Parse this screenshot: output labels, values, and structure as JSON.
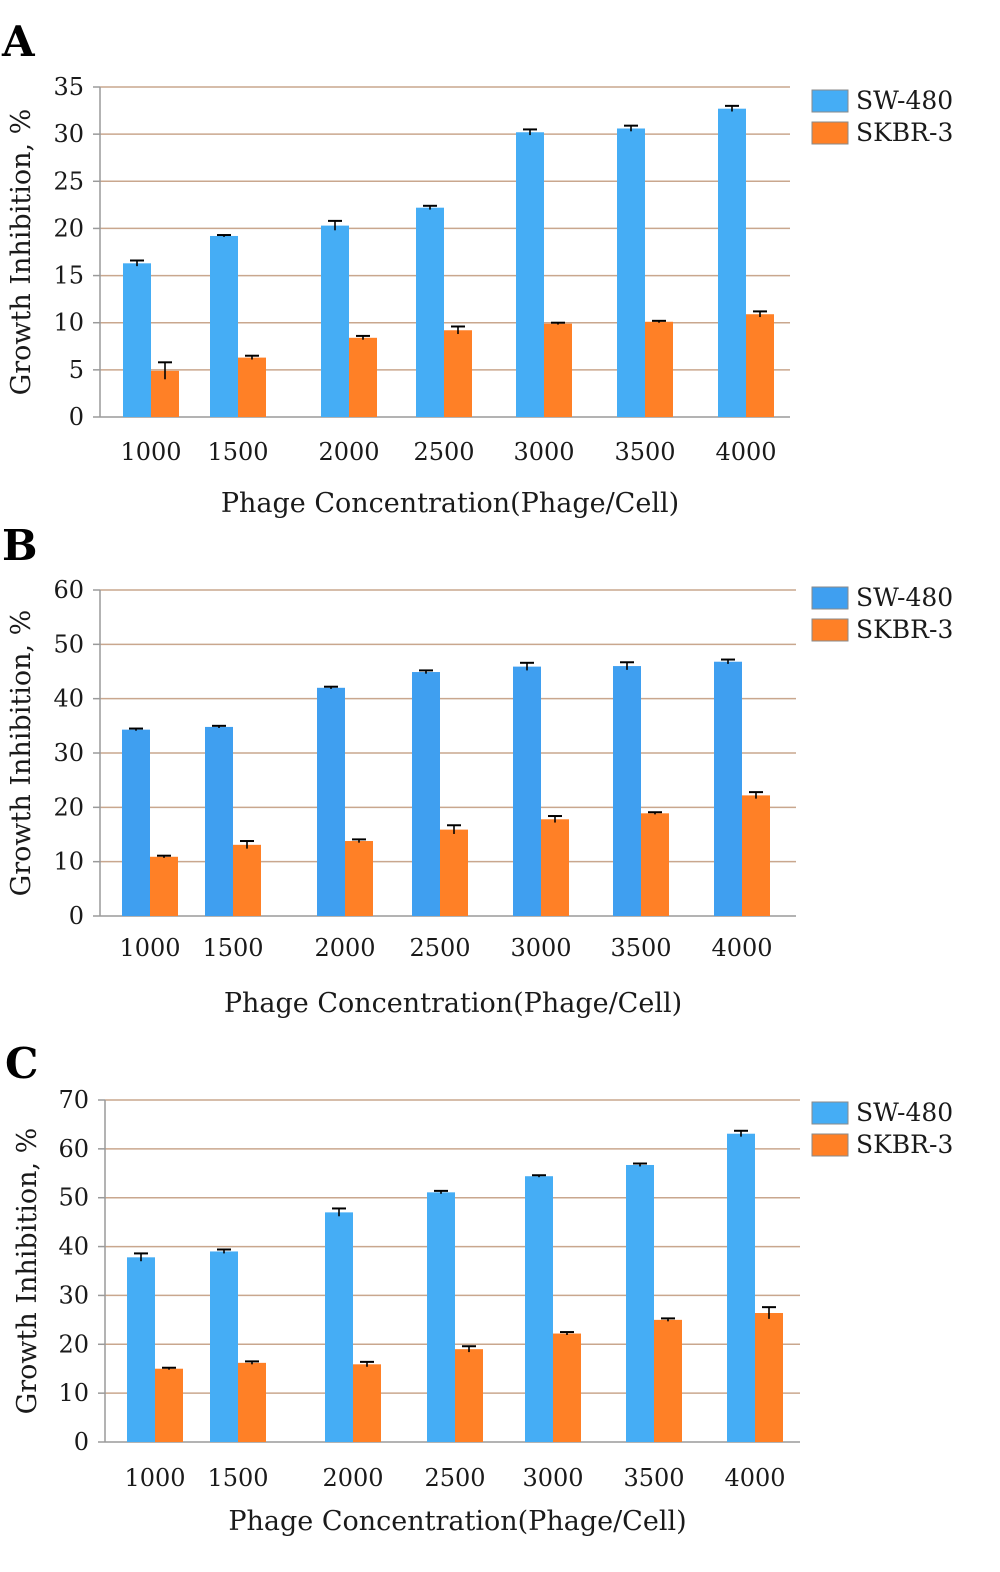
{
  "chart_data": [
    {
      "type": "bar",
      "panel_label": "A",
      "categories": [
        "1000",
        "1500",
        "2000",
        "2500",
        "3000",
        "3500",
        "4000"
      ],
      "series": [
        {
          "name": "SW-480",
          "color": "#45adf5",
          "values": [
            16.3,
            19.2,
            20.3,
            22.2,
            30.2,
            30.6,
            32.7
          ],
          "errors": [
            0.3,
            0.1,
            0.5,
            0.2,
            0.3,
            0.3,
            0.3
          ]
        },
        {
          "name": "SKBR-3",
          "color": "#ff8026",
          "values": [
            4.9,
            6.3,
            8.4,
            9.2,
            9.9,
            10.1,
            10.9
          ],
          "errors": [
            0.9,
            0.2,
            0.2,
            0.4,
            0.1,
            0.1,
            0.3
          ]
        }
      ],
      "xlabel": "Phage Concentration(Phage/Cell)",
      "ylabel": "Growth Inhibition, %",
      "ylim": [
        0,
        35
      ],
      "yticks": [
        0,
        5,
        10,
        15,
        20,
        25,
        30,
        35
      ],
      "grid": true,
      "legend": "right"
    },
    {
      "type": "bar",
      "panel_label": "B",
      "categories": [
        "1000",
        "1500",
        "2000",
        "2500",
        "3000",
        "3500",
        "4000"
      ],
      "series": [
        {
          "name": "SW-480",
          "color": "#3f9ff0",
          "values": [
            34.3,
            34.8,
            42.0,
            44.9,
            45.9,
            46.0,
            46.8
          ],
          "errors": [
            0.2,
            0.2,
            0.2,
            0.3,
            0.7,
            0.7,
            0.4
          ]
        },
        {
          "name": "SKBR-3",
          "color": "#ff8026",
          "values": [
            10.9,
            13.1,
            13.8,
            15.9,
            17.8,
            18.9,
            22.2
          ],
          "errors": [
            0.2,
            0.7,
            0.3,
            0.8,
            0.6,
            0.2,
            0.6
          ]
        }
      ],
      "xlabel": "Phage Concentration(Phage/Cell)",
      "ylabel": "Growth Inhibition, %",
      "ylim": [
        0,
        60
      ],
      "yticks": [
        0,
        10,
        20,
        30,
        40,
        50,
        60
      ],
      "grid": true,
      "legend": "right"
    },
    {
      "type": "bar",
      "panel_label": "C",
      "categories": [
        "1000",
        "1500",
        "2000",
        "2500",
        "3000",
        "3500",
        "4000"
      ],
      "series": [
        {
          "name": "SW-480",
          "color": "#45adf5",
          "values": [
            37.8,
            39.0,
            47.0,
            51.1,
            54.4,
            56.7,
            63.1
          ],
          "errors": [
            0.8,
            0.4,
            0.8,
            0.3,
            0.2,
            0.3,
            0.6
          ]
        },
        {
          "name": "SKBR-3",
          "color": "#ff8026",
          "values": [
            15.0,
            16.2,
            15.9,
            19.0,
            22.2,
            25.0,
            26.4
          ],
          "errors": [
            0.2,
            0.3,
            0.5,
            0.6,
            0.3,
            0.3,
            1.2
          ]
        }
      ],
      "xlabel": "Phage Concentration(Phage/Cell)",
      "ylabel": "Growth Inhibition, %",
      "ylim": [
        0,
        70
      ],
      "yticks": [
        0,
        10,
        20,
        30,
        40,
        50,
        60,
        70
      ],
      "grid": true,
      "legend": "right"
    }
  ]
}
